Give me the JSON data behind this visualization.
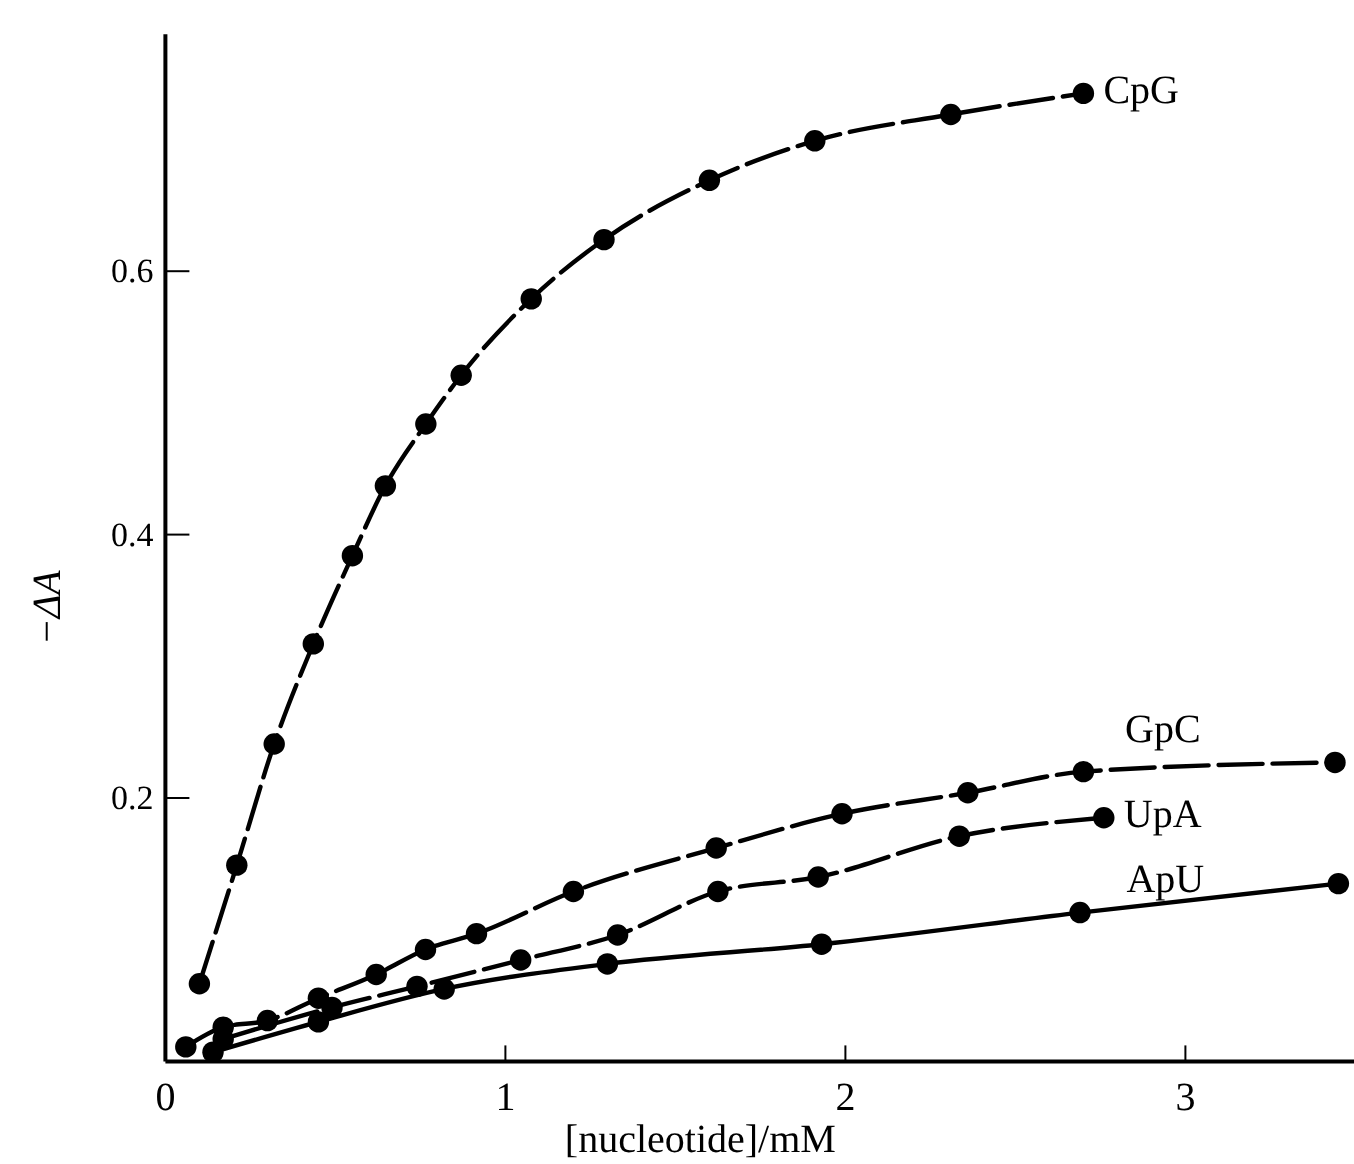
{
  "chart_data": {
    "type": "line",
    "xlabel": "[nucleotide]/mM",
    "ylabel": "−ΔA",
    "xlim": [
      0,
      3.5
    ],
    "ylim": [
      0,
      0.78
    ],
    "xticks": [
      0,
      {
        "value": 1,
        "label": "1"
      },
      {
        "value": 2,
        "label": "2"
      },
      {
        "value": 3,
        "label": "3"
      }
    ],
    "yticks": [
      0.2,
      0.4,
      0.6
    ],
    "marker": "circle",
    "grid": false,
    "legend": false,
    "series": [
      {
        "name": "CpG",
        "color": "#000000",
        "line_style": "dashed",
        "x": [
          0.1,
          0.21,
          0.32,
          0.435,
          0.55,
          0.647,
          0.766,
          0.87,
          1.076,
          1.29,
          1.6,
          1.91,
          2.31,
          2.7
        ],
        "values": [
          0.059,
          0.149,
          0.241,
          0.317,
          0.384,
          0.437,
          0.484,
          0.521,
          0.579,
          0.624,
          0.669,
          0.699,
          0.719,
          0.735
        ]
      },
      {
        "name": "GpC",
        "color": "#000000",
        "line_style": "dashed",
        "x": [
          0.06,
          0.17,
          0.3,
          0.45,
          0.62,
          0.765,
          0.915,
          1.2,
          1.62,
          1.99,
          2.36,
          2.7,
          3.44
        ],
        "values": [
          0.011,
          0.026,
          0.031,
          0.048,
          0.066,
          0.085,
          0.097,
          0.129,
          0.162,
          0.188,
          0.204,
          0.22,
          0.227
        ]
      },
      {
        "name": "UpA",
        "color": "#000000",
        "line_style": "dashed",
        "x": [
          0.17,
          0.49,
          0.74,
          1.045,
          1.33,
          1.625,
          1.92,
          2.335,
          2.76
        ],
        "values": [
          0.017,
          0.041,
          0.057,
          0.077,
          0.096,
          0.129,
          0.14,
          0.171,
          0.185
        ]
      },
      {
        "name": "ApU",
        "color": "#000000",
        "line_style": "solid",
        "x": [
          0.14,
          0.45,
          0.82,
          1.3,
          1.93,
          2.69,
          3.45
        ],
        "values": [
          0.007,
          0.03,
          0.055,
          0.074,
          0.089,
          0.113,
          0.135
        ]
      }
    ]
  }
}
